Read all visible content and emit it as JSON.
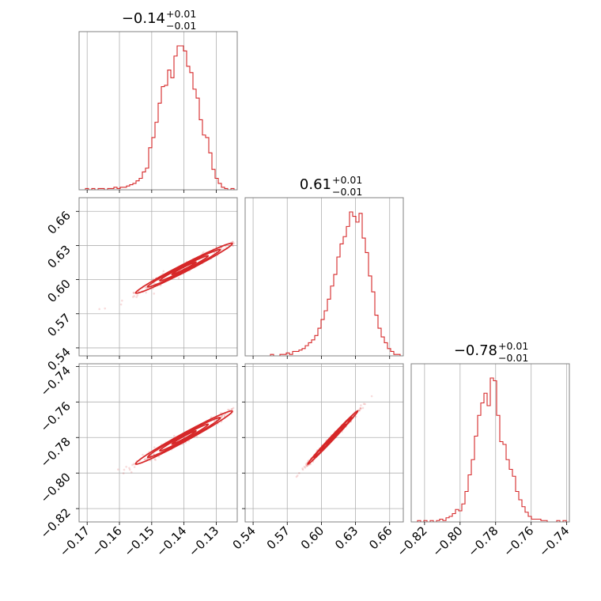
{
  "figure": {
    "type": "corner",
    "colors": {
      "series": "#d62728",
      "grid": "#b0b0b0",
      "frame": "#808080"
    }
  },
  "chart_data": {
    "type": "corner",
    "parameters": [
      {
        "id": "p0",
        "title_main": "−0.14",
        "title_plus": "+0.01",
        "title_minus": "−0.01",
        "range": [
          -0.1725,
          -0.1235
        ],
        "ticks": [
          -0.17,
          -0.16,
          -0.15,
          -0.14,
          -0.13
        ],
        "tick_labels": [
          "−0.17",
          "−0.16",
          "−0.15",
          "−0.14",
          "−0.13"
        ],
        "median": -0.14,
        "sigma": 0.0075
      },
      {
        "id": "p1",
        "title_main": "0.61",
        "title_plus": "+0.01",
        "title_minus": "−0.01",
        "range": [
          0.533,
          0.672
        ],
        "ticks": [
          0.54,
          0.57,
          0.6,
          0.63,
          0.66
        ],
        "tick_labels": [
          "0.54",
          "0.57",
          "0.60",
          "0.63",
          "0.66"
        ],
        "median": 0.61,
        "sigma": 0.011
      },
      {
        "id": "p2",
        "title_main": "−0.78",
        "title_plus": "+0.01",
        "title_minus": "−0.01",
        "range": [
          -0.8275,
          -0.7385
        ],
        "ticks": [
          -0.82,
          -0.8,
          -0.78,
          -0.76,
          -0.74
        ],
        "tick_labels": [
          "−0.82",
          "−0.80",
          "−0.78",
          "−0.76",
          "−0.74"
        ],
        "median": -0.78,
        "sigma": 0.0075
      }
    ],
    "correlations": {
      "p1_p0": 0.985,
      "p2_p0": 0.985,
      "p2_p1": 0.995
    },
    "histograms": [
      {
        "param": "p0",
        "bins": [
          -0.1725,
          -0.1235
        ],
        "counts": [
          0,
          0,
          1,
          0,
          1,
          0,
          1,
          1,
          0,
          1,
          1,
          2,
          1,
          2,
          2,
          3,
          4,
          5,
          7,
          9,
          14,
          17,
          33,
          41,
          53,
          68,
          81,
          82,
          94,
          88,
          105,
          113,
          113,
          109,
          97,
          92,
          79,
          72,
          55,
          43,
          41,
          29,
          16,
          9,
          5,
          2,
          1,
          0,
          1,
          0
        ]
      },
      {
        "param": "p1",
        "bins": [
          0.533,
          0.672
        ],
        "counts": [
          0,
          0,
          0,
          0,
          0,
          0,
          0,
          0,
          1,
          0,
          0,
          1,
          1,
          2,
          1,
          3,
          3,
          4,
          5,
          7,
          9,
          11,
          14,
          19,
          25,
          31,
          39,
          48,
          56,
          68,
          77,
          82,
          89,
          99,
          96,
          92,
          98,
          81,
          71,
          55,
          44,
          28,
          19,
          13,
          9,
          5,
          3,
          1,
          1,
          0
        ]
      },
      {
        "param": "p2",
        "bins": [
          -0.8275,
          -0.7385
        ],
        "counts": [
          0,
          0,
          1,
          0,
          1,
          0,
          1,
          0,
          1,
          2,
          1,
          3,
          4,
          6,
          9,
          8,
          13,
          22,
          34,
          45,
          62,
          77,
          86,
          93,
          84,
          104,
          102,
          77,
          58,
          56,
          45,
          38,
          33,
          22,
          16,
          11,
          7,
          4,
          2,
          2,
          2,
          1,
          1,
          0,
          0,
          0,
          1,
          0,
          1,
          0
        ]
      }
    ],
    "grid": true,
    "axis_labels": {
      "x": "",
      "y": ""
    }
  }
}
